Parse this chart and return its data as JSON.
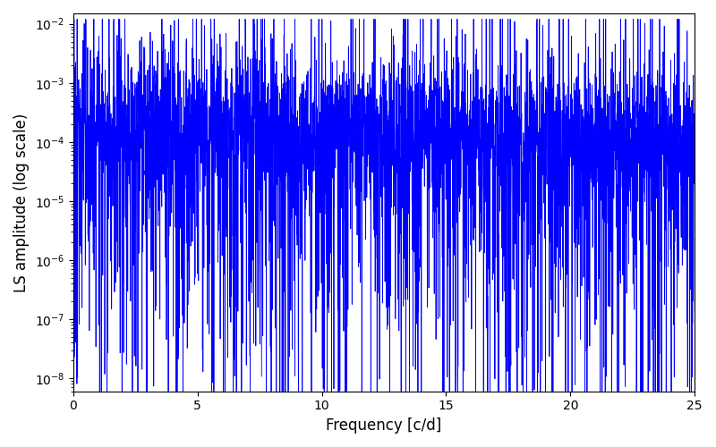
{
  "xlabel": "Frequency [c/d]",
  "ylabel": "LS amplitude (log scale)",
  "xlim": [
    0,
    25
  ],
  "ylim_low": 6e-09,
  "ylim_high": 0.015,
  "yticks": [
    1e-08,
    1e-07,
    1e-06,
    1e-05,
    0.0001,
    0.001,
    0.01
  ],
  "xticks": [
    0,
    5,
    10,
    15,
    20,
    25
  ],
  "line_color": "#0000ff",
  "line_width": 0.6,
  "background_color": "#ffffff",
  "seed": 77,
  "n_points": 4000,
  "freq_max": 25.0
}
